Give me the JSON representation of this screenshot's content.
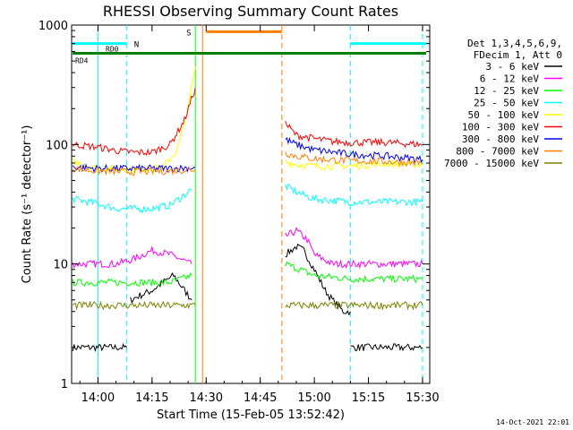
{
  "chart_data": {
    "type": "line",
    "title": "RHESSI Observing Summary Count Rates",
    "xlabel": "Start Time (15-Feb-05 13:52:42)",
    "ylabel": "Count Rate (s⁻¹ detector⁻¹)",
    "y_scale": "log",
    "ylim": [
      1,
      1000
    ],
    "x_range_minutes": [
      "13:52:42",
      "15:32:00"
    ],
    "x_ticks": [
      "14:00",
      "14:15",
      "14:30",
      "14:45",
      "15:00",
      "15:15",
      "15:30"
    ],
    "y_ticks": [
      "1",
      "10",
      "100",
      "1000"
    ],
    "footer_timestamp": "14-Oct-2021 22:01",
    "legend_header": [
      "Det 1,3,4,5,6,9,",
      "FDecim 1, Att 0"
    ],
    "flag_labels": {
      "n": "N",
      "s": "S",
      "rd0": "RD0",
      "rd4": "RD4"
    },
    "series": [
      {
        "name": "3 - 6 keV",
        "color": "#000000",
        "segments": [
          {
            "x": [
              "13:53",
              "13:57",
              "14:00",
              "14:04",
              "14:07",
              "14:08"
            ],
            "y": [
              2,
              2,
              2,
              2,
              2,
              2
            ]
          },
          {
            "x": [
              "14:09",
              "14:12",
              "14:15",
              "14:18",
              "14:21",
              "14:24",
              "14:26"
            ],
            "y": [
              5,
              5.5,
              6,
              7,
              8,
              6,
              5
            ]
          },
          {
            "x": [
              "14:52",
              "14:55",
              "14:57",
              "15:00",
              "15:03",
              "15:05",
              "15:08",
              "15:10"
            ],
            "y": [
              12,
              14,
              13,
              9,
              6,
              5,
              4,
              4
            ]
          },
          {
            "x": [
              "15:10",
              "15:14",
              "15:18",
              "15:22",
              "15:26",
              "15:30"
            ],
            "y": [
              2,
              2,
              2,
              2,
              2,
              2
            ]
          }
        ]
      },
      {
        "name": "6 - 12 keV",
        "color": "#ff00ff",
        "segments": [
          {
            "x": [
              "13:53",
              "14:00",
              "14:05",
              "14:10",
              "14:15",
              "14:20",
              "14:26"
            ],
            "y": [
              10,
              10,
              10,
              11,
              13,
              12,
              10
            ]
          },
          {
            "x": [
              "14:52",
              "14:55",
              "14:58",
              "15:00",
              "15:05",
              "15:10",
              "15:20",
              "15:30"
            ],
            "y": [
              17,
              19,
              16,
              12,
              10,
              10,
              10,
              10
            ]
          }
        ]
      },
      {
        "name": "12 - 25 keV",
        "color": "#00ff00",
        "segments": [
          {
            "x": [
              "13:53",
              "14:00",
              "14:10",
              "14:20",
              "14:26"
            ],
            "y": [
              7,
              7,
              7,
              7,
              8
            ]
          },
          {
            "x": [
              "14:52",
              "14:56",
              "15:00",
              "15:10",
              "15:20",
              "15:30"
            ],
            "y": [
              10,
              9,
              8,
              7.5,
              7.5,
              7.5
            ]
          }
        ]
      },
      {
        "name": "25 - 50 keV",
        "color": "#00ffff",
        "segments": [
          {
            "x": [
              "13:53",
              "14:00",
              "14:05",
              "14:15",
              "14:20",
              "14:26"
            ],
            "y": [
              35,
              32,
              29,
              29,
              31,
              42
            ]
          },
          {
            "x": [
              "14:52",
              "14:55",
              "15:00",
              "15:10",
              "15:20",
              "15:30"
            ],
            "y": [
              45,
              40,
              35,
              33,
              33,
              33
            ]
          }
        ]
      },
      {
        "name": "50 - 100 keV",
        "color": "#ffff00",
        "segments": [
          {
            "x": [
              "13:53",
              "14:00",
              "14:10",
              "14:18",
              "14:22",
              "14:25",
              "14:27"
            ],
            "y": [
              72,
              63,
              62,
              64,
              90,
              200,
              450
            ]
          },
          {
            "x": [
              "14:52",
              "14:55",
              "15:00",
              "15:10",
              "15:20",
              "15:30"
            ],
            "y": [
              72,
              68,
              66,
              66,
              69,
              68
            ]
          }
        ]
      },
      {
        "name": "100 - 300 keV",
        "color": "#ff0000",
        "segments": [
          {
            "x": [
              "13:53",
              "14:00",
              "14:06",
              "14:10",
              "14:15",
              "14:20",
              "14:24",
              "14:27"
            ],
            "y": [
              100,
              95,
              88,
              86,
              86,
              100,
              160,
              300
            ]
          },
          {
            "x": [
              "14:52",
              "14:55",
              "15:00",
              "15:05",
              "15:10",
              "15:20",
              "15:30"
            ],
            "y": [
              150,
              120,
              112,
              106,
              104,
              104,
              100
            ]
          }
        ]
      },
      {
        "name": "300 - 800 keV",
        "color": "#0000ff",
        "segments": [
          {
            "x": [
              "13:53",
              "14:00",
              "14:10",
              "14:20",
              "14:27"
            ],
            "y": [
              65,
              63,
              63,
              63,
              64
            ]
          },
          {
            "x": [
              "14:52",
              "14:55",
              "15:00",
              "15:10",
              "15:20",
              "15:30"
            ],
            "y": [
              110,
              100,
              90,
              83,
              80,
              75
            ]
          }
        ]
      },
      {
        "name": "800 - 7000 keV",
        "color": "#ff8000",
        "segments": [
          {
            "x": [
              "13:53",
              "14:00",
              "14:10",
              "14:20",
              "14:27"
            ],
            "y": [
              63,
              60,
              59,
              60,
              62
            ]
          },
          {
            "x": [
              "14:52",
              "14:55",
              "15:00",
              "15:10",
              "15:20",
              "15:30"
            ],
            "y": [
              85,
              80,
              76,
              73,
              72,
              70
            ]
          }
        ]
      },
      {
        "name": "7000 - 15000 keV",
        "color": "#808000",
        "segments": [
          {
            "x": [
              "13:53",
              "14:00",
              "14:10",
              "14:20",
              "14:27"
            ],
            "y": [
              4.5,
              4.5,
              4.5,
              4.5,
              4.5
            ]
          },
          {
            "x": [
              "14:52",
              "15:00",
              "15:10",
              "15:20",
              "15:30"
            ],
            "y": [
              4.5,
              4.5,
              4.5,
              4.5,
              4.5
            ]
          }
        ]
      }
    ],
    "annotations": {
      "dashed_lines": [
        {
          "x": "14:08",
          "color": "#00ffff"
        },
        {
          "x": "14:51",
          "color": "#ff8000"
        },
        {
          "x": "15:10",
          "color": "#00ffff"
        },
        {
          "x": "15:30",
          "color": "#00ffff"
        }
      ],
      "solid_lines": [
        {
          "x": "14:00",
          "color": "#00ffff"
        },
        {
          "x": "14:27",
          "color": "#00ff00"
        },
        {
          "x": "14:29",
          "color": "#ff8000"
        }
      ],
      "flag_bars": [
        {
          "key": "n",
          "from": "13:53",
          "to": "14:08",
          "y": 700,
          "color": "#00ffff"
        },
        {
          "key": "n",
          "from": "15:10",
          "to": "15:31",
          "y": 700,
          "color": "#00ffff"
        },
        {
          "key": "s",
          "from": "14:30",
          "to": "14:51",
          "y": 880,
          "color": "#ff8000"
        },
        {
          "key": "rd0",
          "from": "13:53",
          "to": "15:31",
          "y": 580,
          "color": "#008000"
        }
      ]
    }
  }
}
